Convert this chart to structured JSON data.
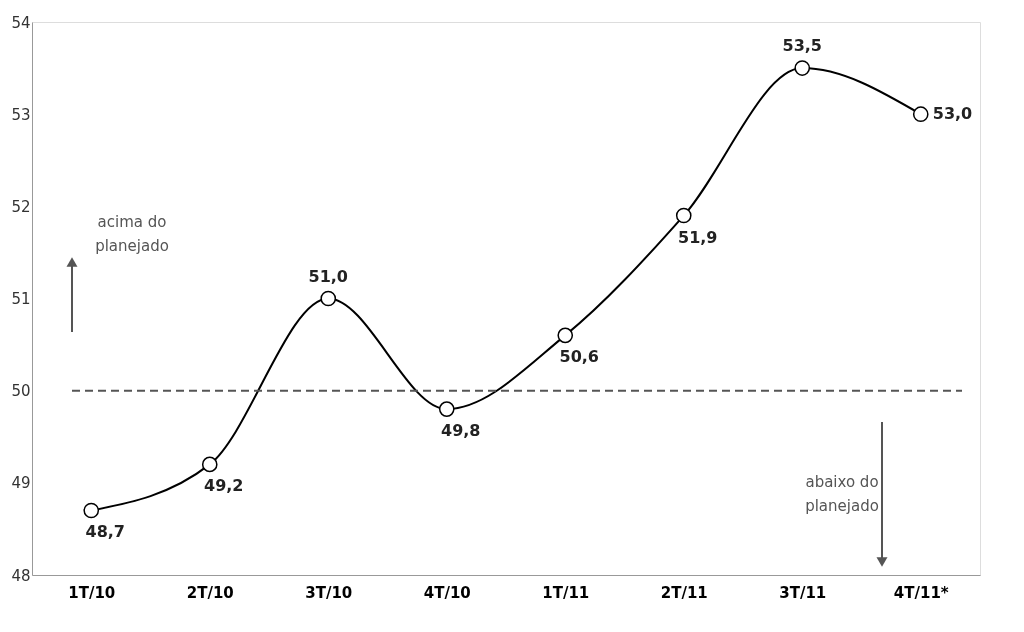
{
  "chart_data": {
    "type": "line",
    "categories": [
      "1T/10",
      "2T/10",
      "3T/10",
      "4T/10",
      "1T/11",
      "2T/11",
      "3T/11",
      "4T/11*"
    ],
    "series": [
      {
        "color": "#000000",
        "values": [
          48.7,
          49.2,
          51.0,
          49.8,
          50.6,
          51.9,
          53.5,
          53.0
        ],
        "value_labels": [
          "48,7",
          "49,2",
          "51,0",
          "49,8",
          "50,6",
          "51,9",
          "53,5",
          "53,0"
        ]
      }
    ],
    "ylim": [
      48,
      54
    ],
    "yticks": [
      48,
      49,
      50,
      51,
      52,
      53,
      54
    ],
    "marker": "circle",
    "line_style": "solid",
    "grid": false,
    "ref_lines": [
      {
        "axis": "y",
        "value": 50,
        "label": null,
        "color": "#555555",
        "line_style": "dashed"
      }
    ],
    "annotations": [
      "acima do planejado",
      "abaixo do planejado"
    ]
  }
}
